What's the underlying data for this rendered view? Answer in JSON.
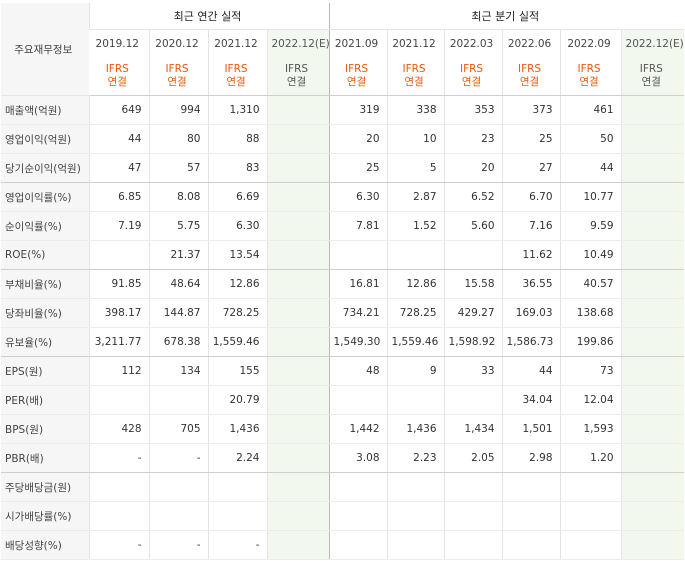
{
  "header": {
    "label_col": "주요재무정보",
    "annual_title": "최근 연간 실적",
    "quarter_title": "최근 분기 실적"
  },
  "periods": {
    "annual": [
      "2019.12",
      "2020.12",
      "2021.12",
      "2022.12(E)"
    ],
    "quarter": [
      "2021.09",
      "2021.12",
      "2022.03",
      "2022.06",
      "2022.09",
      "2022.12(E)"
    ]
  },
  "basis": {
    "line1": "IFRS",
    "line2": "연결"
  },
  "rows": [
    {
      "label": "매출액(억원)",
      "values": [
        "649",
        "994",
        "1,310",
        "",
        "319",
        "338",
        "353",
        "373",
        "461",
        ""
      ]
    },
    {
      "label": "영업이익(억원)",
      "values": [
        "44",
        "80",
        "88",
        "",
        "20",
        "10",
        "23",
        "25",
        "50",
        ""
      ]
    },
    {
      "label": "당기순이익(억원)",
      "values": [
        "47",
        "57",
        "83",
        "",
        "25",
        "5",
        "20",
        "27",
        "44",
        ""
      ]
    },
    {
      "label": "영업이익률(%)",
      "values": [
        "6.85",
        "8.08",
        "6.69",
        "",
        "6.30",
        "2.87",
        "6.52",
        "6.70",
        "10.77",
        ""
      ]
    },
    {
      "label": "순이익률(%)",
      "values": [
        "7.19",
        "5.75",
        "6.30",
        "",
        "7.81",
        "1.52",
        "5.60",
        "7.16",
        "9.59",
        ""
      ]
    },
    {
      "label": "ROE(%)",
      "values": [
        "",
        "21.37",
        "13.54",
        "",
        "",
        "",
        "",
        "11.62",
        "10.49",
        ""
      ]
    },
    {
      "label": "부채비율(%)",
      "values": [
        "91.85",
        "48.64",
        "12.86",
        "",
        "16.81",
        "12.86",
        "15.58",
        "36.55",
        "40.57",
        ""
      ]
    },
    {
      "label": "당좌비율(%)",
      "values": [
        "398.17",
        "144.87",
        "728.25",
        "",
        "734.21",
        "728.25",
        "429.27",
        "169.03",
        "138.68",
        ""
      ]
    },
    {
      "label": "유보율(%)",
      "values": [
        "3,211.77",
        "678.38",
        "1,559.46",
        "",
        "1,549.30",
        "1,559.46",
        "1,598.92",
        "1,586.73",
        "199.86",
        ""
      ]
    },
    {
      "label": "EPS(원)",
      "values": [
        "112",
        "134",
        "155",
        "",
        "48",
        "9",
        "33",
        "44",
        "73",
        ""
      ]
    },
    {
      "label": "PER(배)",
      "values": [
        "",
        "",
        "20.79",
        "",
        "",
        "",
        "",
        "34.04",
        "12.04",
        ""
      ]
    },
    {
      "label": "BPS(원)",
      "values": [
        "428",
        "705",
        "1,436",
        "",
        "1,442",
        "1,436",
        "1,434",
        "1,501",
        "1,593",
        ""
      ]
    },
    {
      "label": "PBR(배)",
      "values": [
        "-",
        "-",
        "2.24",
        "",
        "3.08",
        "2.23",
        "2.05",
        "2.98",
        "1.20",
        ""
      ]
    },
    {
      "label": "주당배당금(원)",
      "values": [
        "",
        "",
        "",
        "",
        "",
        "",
        "",
        "",
        "",
        ""
      ]
    },
    {
      "label": "시가배당률(%)",
      "values": [
        "",
        "",
        "",
        "",
        "",
        "",
        "",
        "",
        "",
        ""
      ]
    },
    {
      "label": "배당성향(%)",
      "values": [
        "-",
        "-",
        "-",
        "",
        "",
        "",
        "",
        "",
        "",
        ""
      ]
    }
  ],
  "colors": {
    "ifrs_accent": "#e8590c",
    "estimate_bg": "#f3f8ef",
    "label_bg": "#f6f6f6"
  }
}
